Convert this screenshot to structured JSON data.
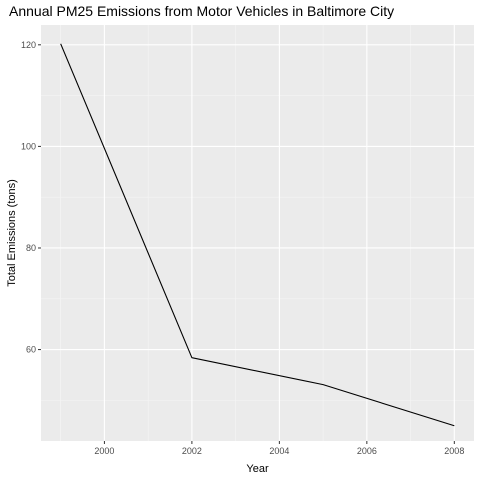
{
  "chart_data": {
    "type": "line",
    "title": "Annual PM25 Emissions from Motor Vehicles in Baltimore City",
    "xlabel": "Year",
    "ylabel": "Total Emissions (tons)",
    "xlim": [
      1998.55,
      2008.45
    ],
    "ylim": [
      42.0,
      123.9
    ],
    "x_ticks": [
      2000,
      2002,
      2004,
      2006,
      2008
    ],
    "y_ticks": [
      60,
      80,
      100,
      120
    ],
    "x_tick_labels": [
      "2000",
      "2002",
      "2004",
      "2006",
      "2008"
    ],
    "y_tick_labels": [
      "60",
      "80",
      "100",
      "120"
    ],
    "grid": true,
    "legend": "none",
    "series": [
      {
        "x": [
          1999,
          2002,
          2005,
          2008
        ],
        "y": [
          120.2,
          58.4,
          53.1,
          45.0
        ],
        "color": "#000000"
      }
    ],
    "colors": {
      "panel_background": "#ebebeb",
      "grid_major": "#ffffff",
      "grid_minor": "#f5f5f5",
      "tick_text": "#4d4d4d",
      "tick_mark": "#333333"
    }
  }
}
